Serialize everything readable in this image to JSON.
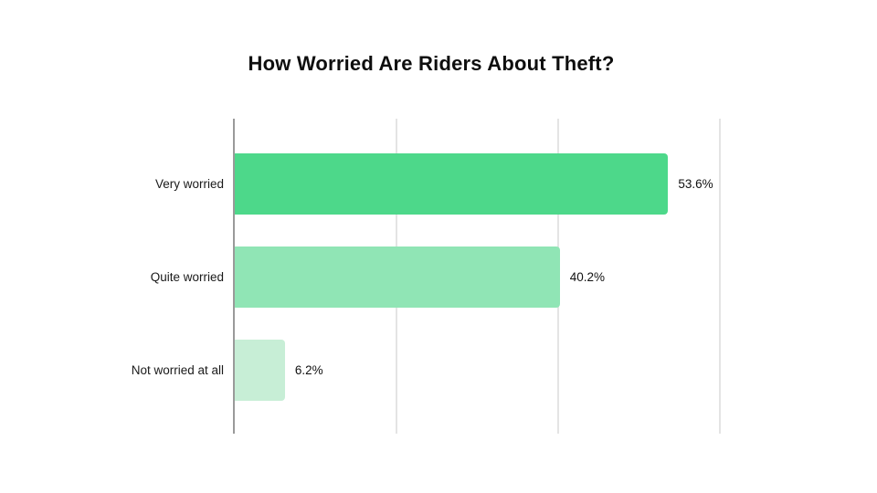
{
  "title": "How Worried Are Riders About Theft?",
  "colors": {
    "background": "#ffffff",
    "axis_line": "#9a9a9a",
    "gridline": "#e4e4e4",
    "title_text": "#0e0e0e",
    "label_text": "#1a1a1a"
  },
  "chart_data": {
    "type": "bar",
    "orientation": "horizontal",
    "title": "How Worried Are Riders About Theft?",
    "categories": [
      "Very worried",
      "Quite worried",
      "Not worried at all"
    ],
    "values": [
      53.6,
      40.2,
      6.2
    ],
    "value_labels": [
      "53.6%",
      "40.2%",
      "6.2%"
    ],
    "bar_colors": [
      "#4dd88a",
      "#90e5b5",
      "#c7eed6"
    ],
    "xlabel": "",
    "ylabel": "",
    "xlim": [
      0,
      79
    ],
    "gridline_values": [
      20,
      40,
      60
    ],
    "x_tick_labels_visible": false,
    "grid": true,
    "legend": false
  }
}
